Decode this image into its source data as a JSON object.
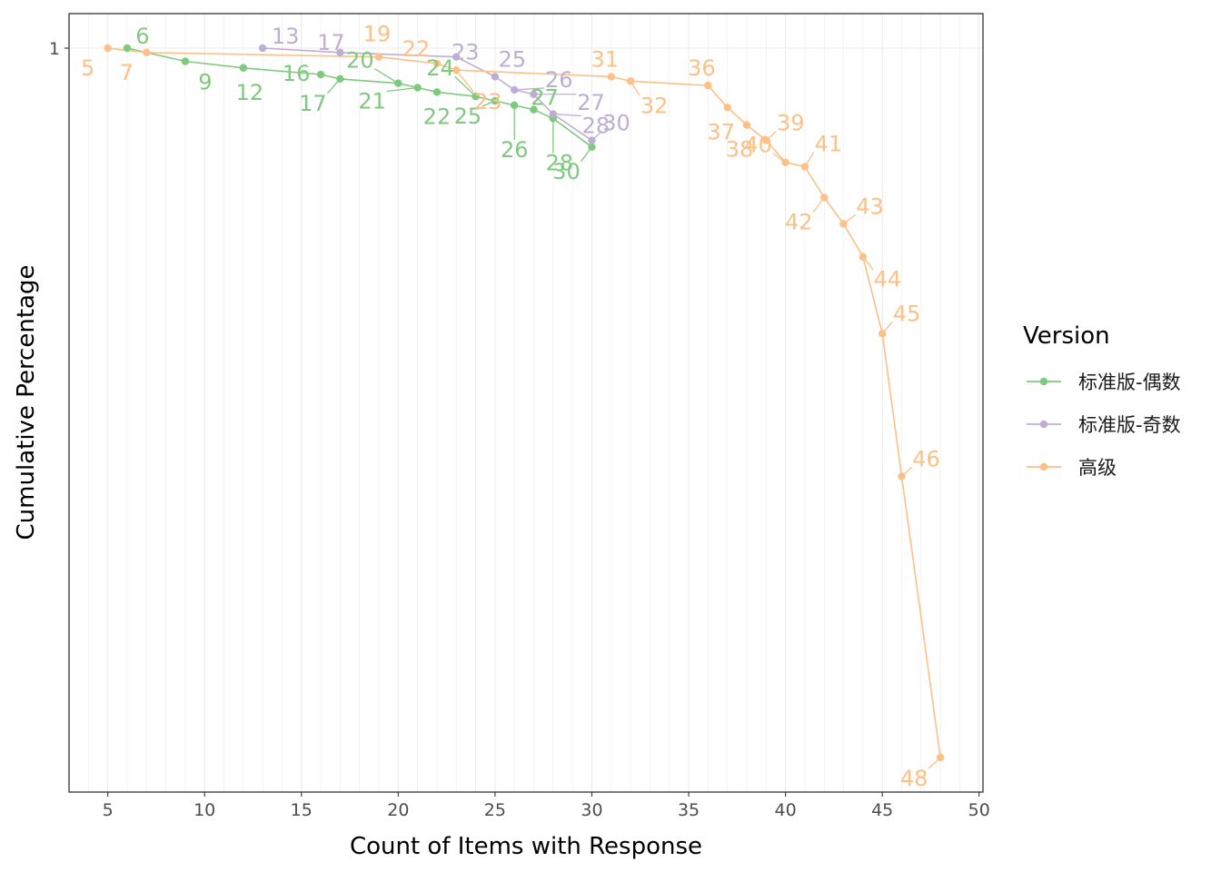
{
  "chart_data": {
    "type": "line",
    "xlabel": "Count of Items with Response",
    "ylabel": "Cumulative Percentage",
    "xlim": [
      3,
      50.2
    ],
    "x_ticks": [
      5,
      10,
      15,
      20,
      25,
      30,
      35,
      40,
      45,
      50
    ],
    "y_ticks": [
      1
    ],
    "y_tick_labels": [
      "1"
    ],
    "grid": true,
    "legend": {
      "title": "Version",
      "position": "right"
    },
    "series": [
      {
        "name": "标准版-偶数",
        "color": "#7fc97f",
        "x": [
          6,
          9,
          12,
          16,
          17,
          20,
          21,
          22,
          24,
          25,
          26,
          27,
          28,
          30
        ],
        "y": [
          1.0,
          0.994,
          0.991,
          0.988,
          0.986,
          0.984,
          0.982,
          0.98,
          0.978,
          0.976,
          0.974,
          0.972,
          0.968,
          0.955
        ],
        "labels": [
          "6",
          "9",
          "12",
          "16",
          "17",
          "20",
          "21",
          "22",
          "24",
          "25",
          "26",
          "27",
          "28",
          "30"
        ]
      },
      {
        "name": "标准版-奇数",
        "color": "#beaed4",
        "x": [
          13,
          17,
          23,
          25,
          26,
          27,
          28,
          30
        ],
        "y": [
          1.0,
          0.998,
          0.996,
          0.987,
          0.981,
          0.979,
          0.97,
          0.958
        ],
        "labels": [
          "13",
          "17",
          "23",
          "25",
          "26",
          "27",
          "28",
          "30"
        ]
      },
      {
        "name": "高级",
        "color": "#fdc086",
        "x": [
          5,
          7,
          19,
          22,
          23,
          31,
          32,
          36,
          37,
          38,
          39,
          40,
          41,
          42,
          43,
          44,
          45,
          46,
          48
        ],
        "y": [
          1.0,
          0.998,
          0.996,
          0.993,
          0.99,
          0.987,
          0.985,
          0.983,
          0.973,
          0.965,
          0.958,
          0.948,
          0.946,
          0.932,
          0.92,
          0.905,
          0.87,
          0.805,
          0.677
        ],
        "labels": [
          "5",
          "7",
          "19",
          "22",
          "23",
          "31",
          "32",
          "36",
          "37",
          "38",
          "39",
          "40",
          "41",
          "42",
          "43",
          "44",
          "45",
          "46",
          "48"
        ]
      }
    ]
  }
}
